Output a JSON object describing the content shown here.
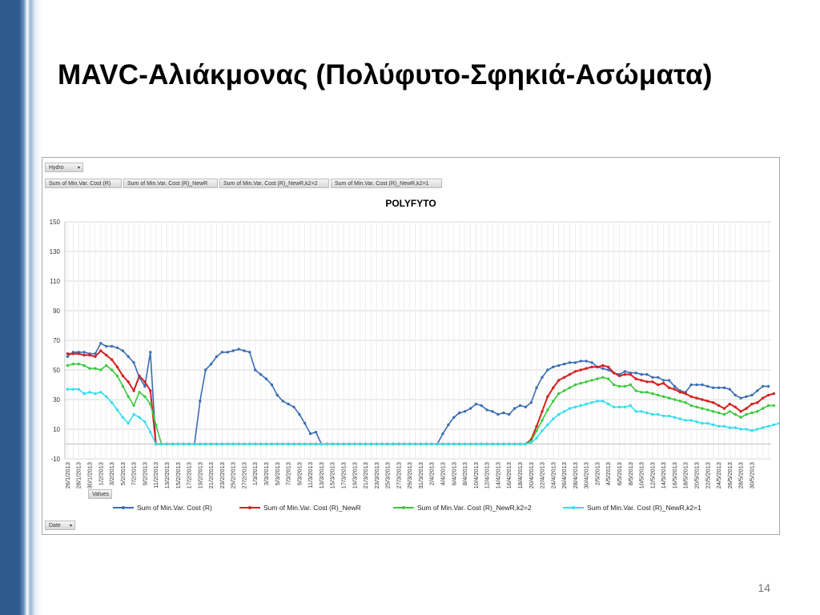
{
  "slide": {
    "title": "MAVC-Αλιάκμονας (Πολύφυτο-Σφηκιά-Ασώματα)",
    "page_number": "14"
  },
  "pivot": {
    "filter_label": "Hydro",
    "value_buttons": [
      "Sum of Min.Var. Cost (R)",
      "Sum of Min.Var. Cost (R)_NewR",
      "Sum of Min.Var. Cost (R)_NewR,k2=2",
      "Sum of Min.Var. Cost (R)_NewR,k2=1"
    ],
    "values_label": "Values",
    "axis_field_label": "Date"
  },
  "chart_data": {
    "type": "line",
    "title": "POLYFYTO",
    "xlabel": "",
    "ylabel": "",
    "ylim": [
      -10,
      150
    ],
    "yticks": [
      -10,
      10,
      30,
      50,
      70,
      90,
      110,
      130,
      150
    ],
    "grid": true,
    "legend_position": "bottom",
    "x_labels": [
      "26/1/2013",
      "28/1/2013",
      "30/1/2013",
      "1/2/2013",
      "3/2/2013",
      "5/2/2013",
      "7/2/2013",
      "9/2/2013",
      "11/2/2013",
      "13/2/2013",
      "15/2/2013",
      "17/2/2013",
      "19/2/2013",
      "21/2/2013",
      "23/2/2013",
      "25/2/2013",
      "27/2/2013",
      "1/3/2013",
      "3/3/2013",
      "5/3/2013",
      "7/3/2013",
      "9/3/2013",
      "11/3/2013",
      "13/3/2013",
      "15/3/2013",
      "17/3/2013",
      "19/3/2013",
      "21/3/2013",
      "23/3/2013",
      "25/3/2013",
      "27/3/2013",
      "29/3/2013",
      "31/3/2013",
      "2/4/2013",
      "4/4/2013",
      "6/4/2013",
      "8/4/2013",
      "10/4/2013",
      "12/4/2013",
      "14/4/2013",
      "16/4/2013",
      "18/4/2013",
      "20/4/2013",
      "22/4/2013",
      "24/4/2013",
      "26/4/2013",
      "28/4/2013",
      "30/4/2013",
      "2/5/2013",
      "4/5/2013",
      "6/5/2013",
      "8/5/2013",
      "10/5/2013",
      "12/5/2013",
      "14/5/2013",
      "16/5/2013",
      "18/5/2013",
      "20/5/2013",
      "22/5/2013",
      "24/5/2013",
      "26/5/2013",
      "28/5/2013",
      "30/5/2013"
    ],
    "series": [
      {
        "name": "Sum of Min.Var. Cost (R)",
        "color": "#3a6db5",
        "values": [
          59,
          62,
          62,
          62,
          61,
          61,
          68,
          66,
          66,
          65,
          63,
          59,
          55,
          45,
          39,
          62,
          0,
          0,
          0,
          0,
          0,
          0,
          0,
          0,
          29,
          50,
          54,
          59,
          62,
          62,
          63,
          64,
          63,
          62,
          50,
          47,
          44,
          40,
          33,
          29,
          27,
          25,
          20,
          14,
          7,
          8,
          0,
          0,
          0,
          0,
          0,
          0,
          0,
          0,
          0,
          0,
          0,
          0,
          0,
          0,
          0,
          0,
          0,
          0,
          0,
          0,
          0,
          0,
          7,
          13,
          18,
          21,
          22,
          24,
          27,
          26,
          23,
          22,
          20,
          21,
          20,
          24,
          26,
          25,
          28,
          38,
          45,
          50,
          52,
          53,
          54,
          55,
          55,
          56,
          56,
          55,
          52,
          51,
          50,
          48,
          47,
          49,
          48,
          48,
          47,
          47,
          45,
          45,
          43,
          43,
          39,
          36,
          35,
          40,
          40,
          40,
          39,
          38,
          38,
          38,
          37,
          33,
          31,
          32,
          33,
          36,
          39,
          39
        ]
      },
      {
        "name": "Sum of Min.Var. Cost (R)_NewR",
        "color": "#d42020",
        "values": [
          61,
          61,
          61,
          60,
          60,
          59,
          63,
          60,
          57,
          52,
          46,
          42,
          36,
          46,
          42,
          36,
          0,
          0,
          0,
          0,
          0,
          0,
          0,
          0,
          0,
          0,
          0,
          0,
          0,
          0,
          0,
          0,
          0,
          0,
          0,
          0,
          0,
          0,
          0,
          0,
          0,
          0,
          0,
          0,
          0,
          0,
          0,
          0,
          0,
          0,
          0,
          0,
          0,
          0,
          0,
          0,
          0,
          0,
          0,
          0,
          0,
          0,
          0,
          0,
          0,
          0,
          0,
          0,
          0,
          0,
          0,
          0,
          0,
          0,
          0,
          0,
          0,
          0,
          0,
          0,
          0,
          0,
          0,
          0,
          3,
          12,
          22,
          32,
          38,
          43,
          45,
          47,
          49,
          50,
          51,
          52,
          52,
          53,
          52,
          48,
          46,
          47,
          47,
          44,
          43,
          42,
          42,
          40,
          41,
          38,
          37,
          35,
          34,
          32,
          31,
          30,
          29,
          28,
          26,
          24,
          27,
          25,
          22,
          24,
          27,
          28,
          31,
          33,
          34
        ]
      },
      {
        "name": "Sum of Min.Var. Cost (R)_NewR,k2=2",
        "color": "#3cc83c",
        "values": [
          53,
          54,
          54,
          53,
          51,
          51,
          50,
          53,
          50,
          46,
          39,
          32,
          26,
          35,
          32,
          27,
          13,
          0,
          0,
          0,
          0,
          0,
          0,
          0,
          0,
          0,
          0,
          0,
          0,
          0,
          0,
          0,
          0,
          0,
          0,
          0,
          0,
          0,
          0,
          0,
          0,
          0,
          0,
          0,
          0,
          0,
          0,
          0,
          0,
          0,
          0,
          0,
          0,
          0,
          0,
          0,
          0,
          0,
          0,
          0,
          0,
          0,
          0,
          0,
          0,
          0,
          0,
          0,
          0,
          0,
          0,
          0,
          0,
          0,
          0,
          0,
          0,
          0,
          0,
          0,
          0,
          0,
          0,
          0,
          2,
          9,
          16,
          23,
          29,
          34,
          36,
          38,
          40,
          41,
          42,
          43,
          44,
          45,
          44,
          40,
          39,
          39,
          40,
          36,
          35,
          35,
          34,
          33,
          32,
          31,
          30,
          29,
          28,
          26,
          25,
          24,
          23,
          22,
          21,
          20,
          22,
          20,
          18,
          20,
          21,
          22,
          24,
          26,
          26
        ]
      },
      {
        "name": "Sum of Min.Var. Cost (R)_NewR,k2=1",
        "color": "#33ddee",
        "values": [
          37,
          37,
          37,
          34,
          35,
          34,
          35,
          32,
          28,
          23,
          18,
          14,
          20,
          18,
          15,
          8,
          0,
          0,
          0,
          0,
          0,
          0,
          0,
          0,
          0,
          0,
          0,
          0,
          0,
          0,
          0,
          0,
          0,
          0,
          0,
          0,
          0,
          0,
          0,
          0,
          0,
          0,
          0,
          0,
          0,
          0,
          0,
          0,
          0,
          0,
          0,
          0,
          0,
          0,
          0,
          0,
          0,
          0,
          0,
          0,
          0,
          0,
          0,
          0,
          0,
          0,
          0,
          0,
          0,
          0,
          0,
          0,
          0,
          0,
          0,
          0,
          0,
          0,
          0,
          0,
          0,
          0,
          0,
          0,
          1,
          4,
          9,
          13,
          17,
          20,
          22,
          24,
          25,
          26,
          27,
          28,
          29,
          29,
          27,
          25,
          25,
          25,
          26,
          22,
          22,
          21,
          20,
          20,
          19,
          19,
          18,
          17,
          16,
          16,
          15,
          14,
          14,
          13,
          12,
          12,
          11,
          11,
          10,
          10,
          9,
          10,
          11,
          12,
          13,
          14,
          15
        ]
      }
    ]
  }
}
